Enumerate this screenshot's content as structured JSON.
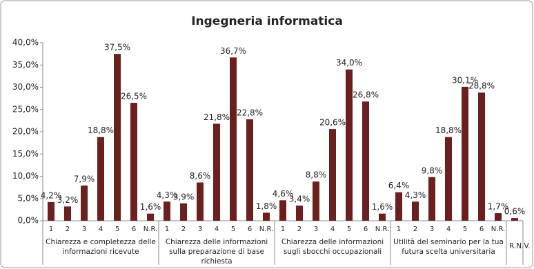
{
  "chart_data": {
    "type": "bar",
    "title": "Ingegneria informatica",
    "color": "#6b1f1f",
    "ylim": [
      0,
      40
    ],
    "yticks": [
      {
        "value": 0,
        "label": "0,0%"
      },
      {
        "value": 5,
        "label": "5,0%"
      },
      {
        "value": 10,
        "label": "10,0%"
      },
      {
        "value": 15,
        "label": "15,0%"
      },
      {
        "value": 20,
        "label": "20,0%"
      },
      {
        "value": 25,
        "label": "25,0%"
      },
      {
        "value": 30,
        "label": "30,0%"
      },
      {
        "value": 35,
        "label": "35,0%"
      },
      {
        "value": 40,
        "label": "40,0%"
      }
    ],
    "groups": [
      {
        "name": "Chiarezza e completezza delle informazioni ricevute",
        "categories": [
          "1",
          "2",
          "3",
          "4",
          "5",
          "6",
          "N.R."
        ],
        "values": [
          4.2,
          3.2,
          7.9,
          18.8,
          37.5,
          26.5,
          1.6
        ],
        "value_labels": [
          "4,2%",
          "3,2%",
          "7,9%",
          "18,8%",
          "37,5%",
          "26,5%",
          "1,6%"
        ]
      },
      {
        "name": "Chiarezza delle informazioni sulla preparazione di base richiesta",
        "categories": [
          "1",
          "2",
          "3",
          "4",
          "5",
          "6",
          "N.R."
        ],
        "values": [
          4.3,
          3.9,
          8.6,
          21.8,
          36.7,
          22.8,
          1.8
        ],
        "value_labels": [
          "4,3%",
          "3,9%",
          "8,6%",
          "21,8%",
          "36,7%",
          "22,8%",
          "1,8%"
        ]
      },
      {
        "name": "Chiarezza delle informazioni sugli sbocchi occupazionali",
        "categories": [
          "1",
          "2",
          "3",
          "4",
          "5",
          "6",
          "N.R."
        ],
        "values": [
          4.6,
          3.4,
          8.8,
          20.6,
          34.0,
          26.8,
          1.6
        ],
        "value_labels": [
          "4,6%",
          "3,4%",
          "8,8%",
          "20,6%",
          "34,0%",
          "26,8%",
          "1,6%"
        ]
      },
      {
        "name": "Utilità del seminario per la tua futura scelta universitaria",
        "categories": [
          "1",
          "2",
          "3",
          "4",
          "5",
          "6",
          "N.R."
        ],
        "values": [
          6.4,
          4.3,
          9.8,
          18.8,
          30.1,
          28.8,
          1.7
        ],
        "value_labels": [
          "6,4%",
          "4,3%",
          "9,8%",
          "18,8%",
          "30,1%",
          "28,8%",
          "1,7%"
        ]
      },
      {
        "name": "R.N.V.",
        "categories": [
          null
        ],
        "values": [
          0.6
        ],
        "value_labels": [
          "0,6%"
        ]
      }
    ]
  }
}
